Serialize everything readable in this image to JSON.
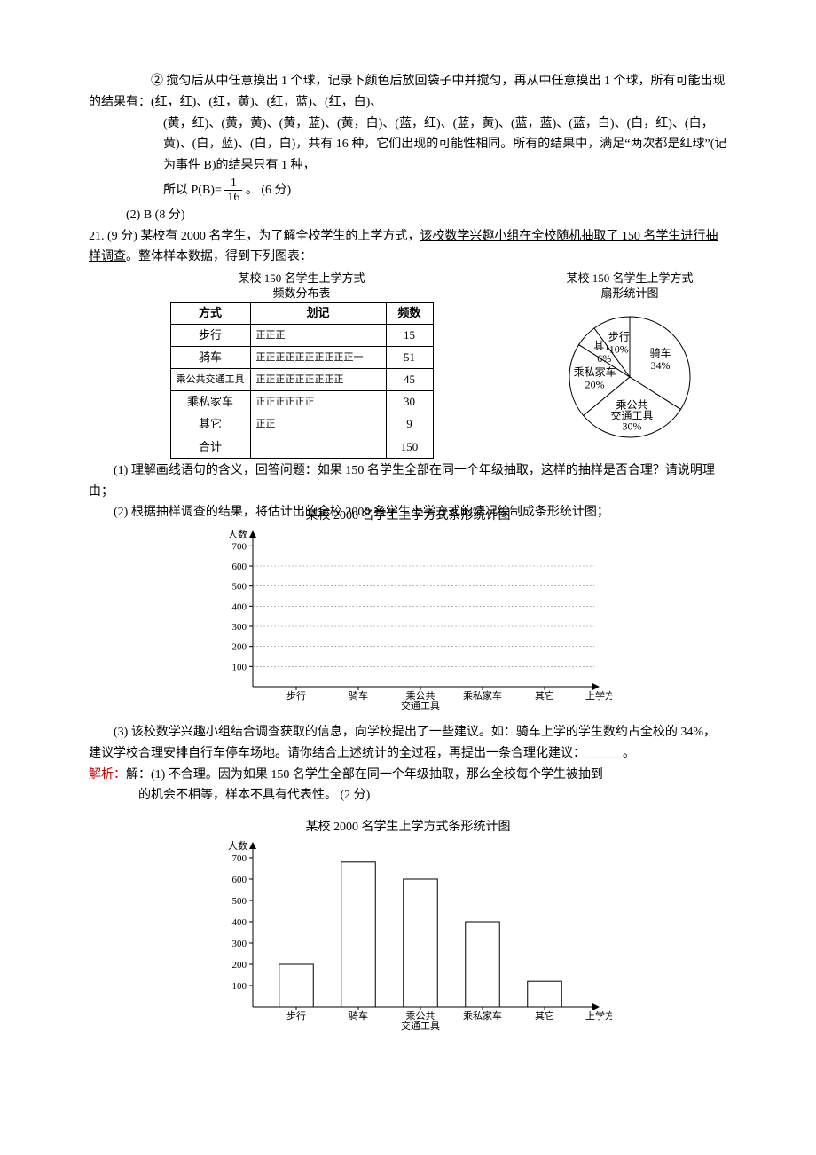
{
  "para1": {
    "line1": "② 搅匀后从中任意摸出 1 个球，记录下颜色后放回袋子中并搅匀，再从中任意摸出 1 个球，所有可能出现的结果有：(红，红)、(红，黄)、(红，蓝)、(红，白)、",
    "line2": "(黄，红)、(黄，黄)、(黄，蓝)、(黄，白)、(蓝，红)、(蓝，黄)、(蓝，蓝)、(蓝，白)、(白，红)、(白，黄)、(白，蓝)、(白，白)，共有 16 种，它们出现的可能性相同。所有的结果中，满足“两次都是红球”(记为事件 B)的结果只有 1 种，",
    "line3a": "所以 P(B)=",
    "frac_num": "1",
    "frac_den": "16",
    "line3b": "。    (6 分)"
  },
  "para2": "(2) B (8 分)",
  "q21": {
    "head_a": "21. (9 分)  某校有 2000 名学生，为了解全校学生的上学方式，",
    "head_u": "该校数学兴趣小组在全校随机抽取了 150 名学生进行抽样调查",
    "head_b": "。整体样本数据，得到下列图表：",
    "tbl_title1": "某校 150 名学生上学方式",
    "tbl_title2": "频数分布表",
    "pie_title1": "某校 150 名学生上学方式",
    "pie_title2": "扇形统计图",
    "headers": [
      "方式",
      "划记",
      "频数"
    ],
    "rows": [
      [
        "步行",
        "正正正",
        "15"
      ],
      [
        "骑车",
        "正正正正正正正正正正一",
        "51"
      ],
      [
        "乘公共交通工具",
        "正正正正正正正正正",
        "45"
      ],
      [
        "乘私家车",
        "正正正正正正",
        "30"
      ],
      [
        "其它",
        "正正",
        "9"
      ],
      [
        "合计",
        "",
        "150"
      ]
    ]
  },
  "pie": {
    "bg": "#ffffff",
    "stroke": "#000000",
    "slices": [
      {
        "label": "骑车",
        "pct": "34%",
        "value": 34,
        "color": "#ffffff"
      },
      {
        "label": "乘公共",
        "label2": "交通工具",
        "pct": "30%",
        "value": 30,
        "color": "#ffffff"
      },
      {
        "label": "乘私家车",
        "pct": "20%",
        "value": 20,
        "color": "#ffffff"
      },
      {
        "label": "其它",
        "pct": "6%",
        "value": 6,
        "color": "#ffffff"
      },
      {
        "label": "步行",
        "pct": "10%",
        "value": 10,
        "color": "#ffffff"
      }
    ],
    "fontsize": 12
  },
  "sub1": {
    "a": "(1) 理解画线语句的含义，回答问题：如果 150 名学生全部在同一个",
    "u": "年级抽取",
    "b": "，这样的抽样是否合理？请说明理由；"
  },
  "sub2": "(2) 根据抽样调查的结果，将估计出的全校 2000 名学生上学方式的情况绘制成条形统计图；",
  "emptychart": {
    "title": "某校 2000 名学生上学方式条形统计图",
    "ylabel": "人数",
    "xlabel": "上学方式",
    "yticks": [
      100,
      200,
      300,
      400,
      500,
      600,
      700
    ],
    "ymax": 750,
    "categories": [
      "步行",
      "骑车",
      "乘公共\n交通工具",
      "乘私家车",
      "其它"
    ],
    "axis_color": "#000000",
    "grid_color": "#888888",
    "fontsize": 11
  },
  "sub3": "(3) 该校数学兴趣小组结合调查获取的信息，向学校提出了一些建议。如：骑车上学的学生数约占全校的 34%，建议学校合理安排自行车停车场地。请你结合上述统计的全过程，再提出一条合理化建议：______。",
  "answer_label": "解析：",
  "answer1_a": "解：(1) 不合理。因为如果 150 名学生全部在同一个年级抽取，那么全校每个学生被抽到",
  "answer1_b": "的机会不相等，样本不具有代表性。  (2 分)",
  "barchart": {
    "title": "某校 2000 名学生上学方式条形统计图",
    "ylabel": "人数",
    "xlabel": "上学方式",
    "yticks": [
      100,
      200,
      300,
      400,
      500,
      600,
      700
    ],
    "ymax": 750,
    "categories": [
      "步行",
      "骑车",
      "乘公共\n交通工具",
      "乘私家车",
      "其它"
    ],
    "values": [
      200,
      680,
      600,
      400,
      120
    ],
    "bar_color": "#ffffff",
    "bar_stroke": "#000000",
    "axis_color": "#000000",
    "fontsize": 11,
    "bar_width": 0.55
  }
}
